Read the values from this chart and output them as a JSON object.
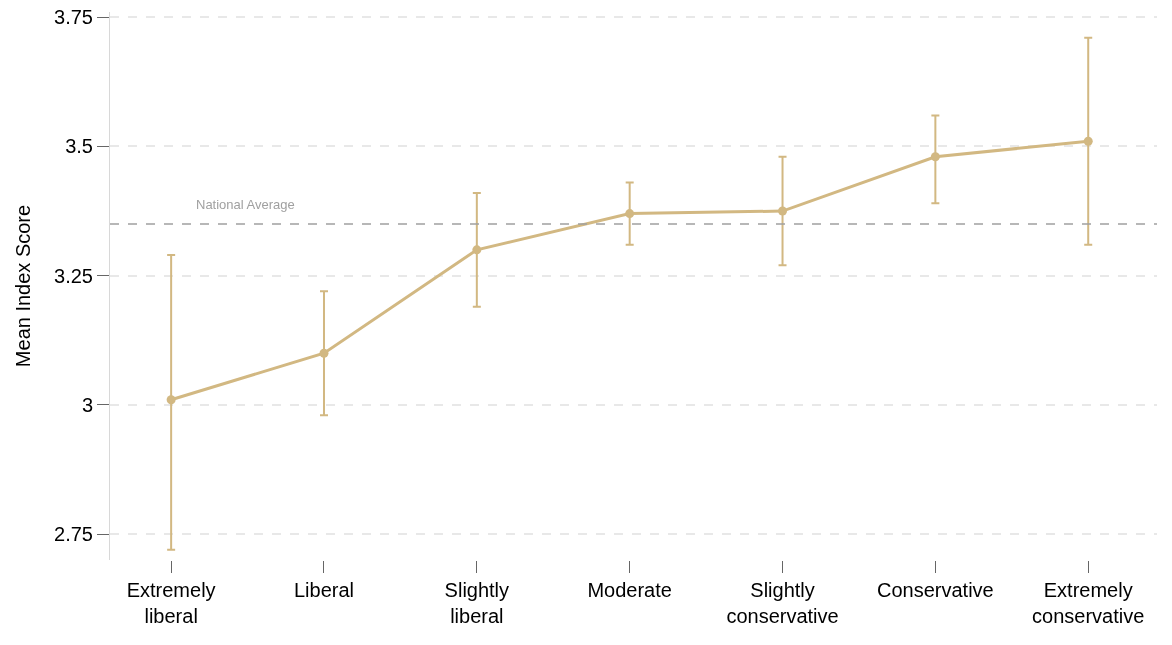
{
  "chart_data": {
    "type": "line",
    "ylabel": "Mean Index Score",
    "categories": [
      "Extremely liberal",
      "Liberal",
      "Slightly liberal",
      "Moderate",
      "Slightly conservative",
      "Conservative",
      "Extremely conservative"
    ],
    "series": [
      {
        "color": "#d2b882",
        "values": [
          3.01,
          3.1,
          3.3,
          3.37,
          3.375,
          3.48,
          3.51
        ],
        "errors": [
          [
            2.72,
            3.29
          ],
          [
            2.98,
            3.22
          ],
          [
            3.19,
            3.41
          ],
          [
            3.31,
            3.43
          ],
          [
            3.27,
            3.48
          ],
          [
            3.39,
            3.56
          ],
          [
            3.31,
            3.71
          ]
        ]
      }
    ],
    "ylim": [
      2.7,
      3.76
    ],
    "yticks": [
      2.75,
      3,
      3.25,
      3.5,
      3.75
    ],
    "grid": "y",
    "marker": "circle",
    "line_style": "solid",
    "ref_lines": [
      {
        "axis": "y",
        "value": 3.35,
        "label": "National Average",
        "color": "#a0a0a0",
        "line_style": "dashed"
      }
    ]
  }
}
